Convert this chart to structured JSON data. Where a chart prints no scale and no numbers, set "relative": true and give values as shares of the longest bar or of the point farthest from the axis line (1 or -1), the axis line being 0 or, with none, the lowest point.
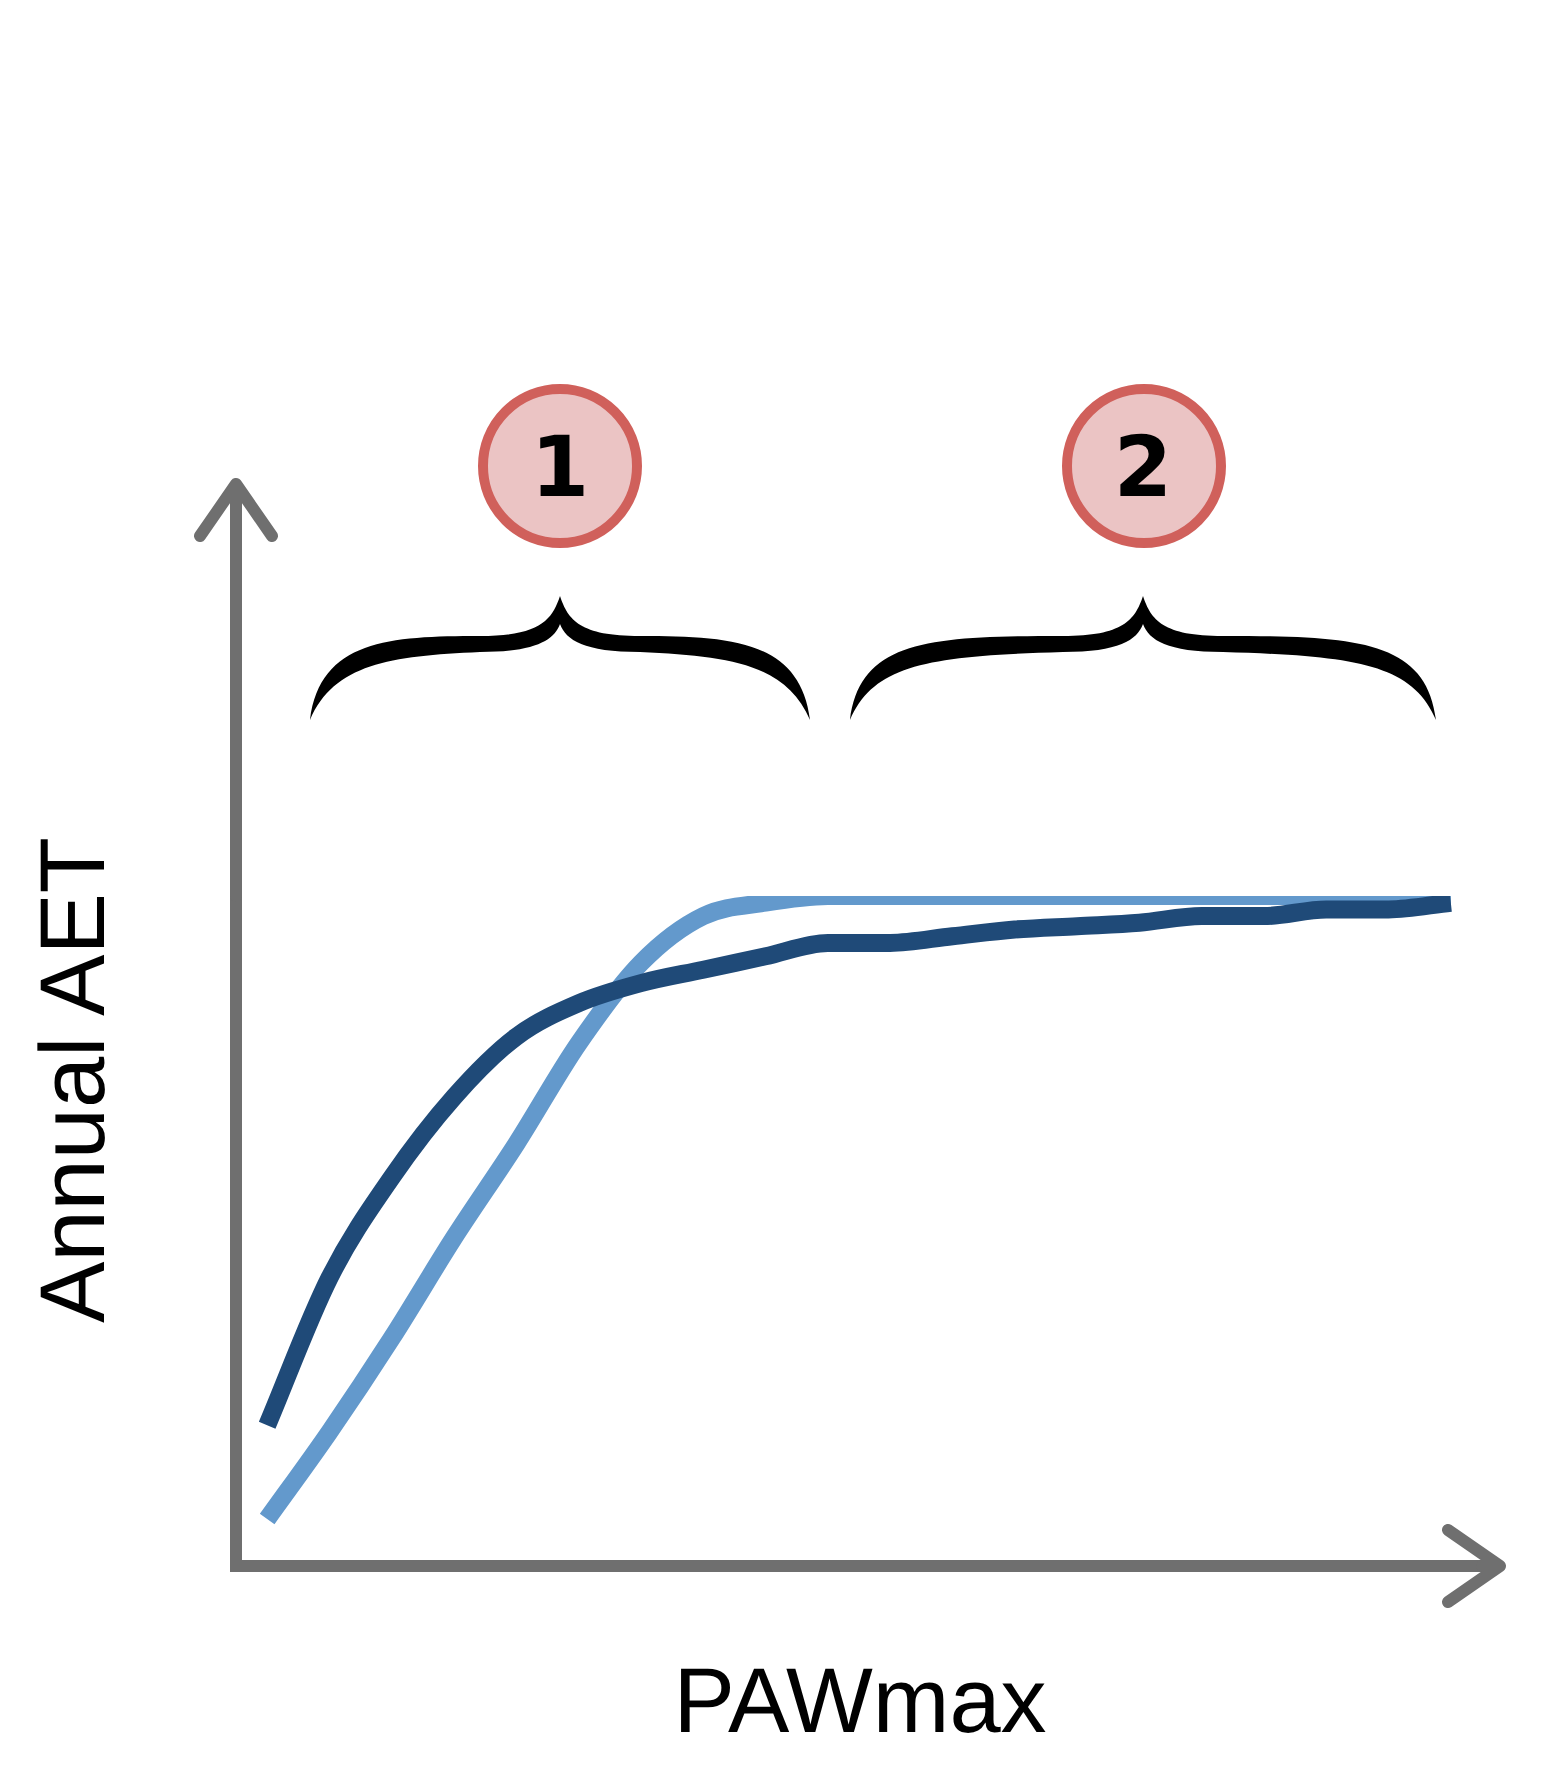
{
  "chart_data": {
    "type": "line",
    "relative": true,
    "xlabel": "PAWmax",
    "ylabel": "Annual AET",
    "tick_labels": false,
    "grid": false,
    "legend": false,
    "marker": "none",
    "line_style": "solid",
    "categories": [
      null,
      null,
      null,
      null,
      null,
      null,
      null,
      null,
      null,
      null,
      null,
      null,
      null,
      null,
      null,
      null,
      null,
      null,
      null,
      null
    ],
    "series": [
      {
        "color": "#6399cc",
        "values": [
          0.07,
          0.2,
          0.34,
          0.49,
          0.63,
          0.78,
          0.9,
          0.97,
          0.99,
          1.0,
          1.0,
          1.0,
          1.0,
          1.0,
          1.0,
          1.0,
          1.0,
          1.0,
          1.0,
          1.0
        ]
      },
      {
        "color": "#1f4a78",
        "values": [
          0.21,
          0.43,
          0.58,
          0.7,
          0.79,
          0.84,
          0.87,
          0.89,
          0.91,
          0.93,
          0.93,
          0.94,
          0.95,
          0.955,
          0.96,
          0.97,
          0.97,
          0.98,
          0.98,
          0.99
        ]
      }
    ],
    "annotations": [
      "1",
      "2"
    ]
  }
}
